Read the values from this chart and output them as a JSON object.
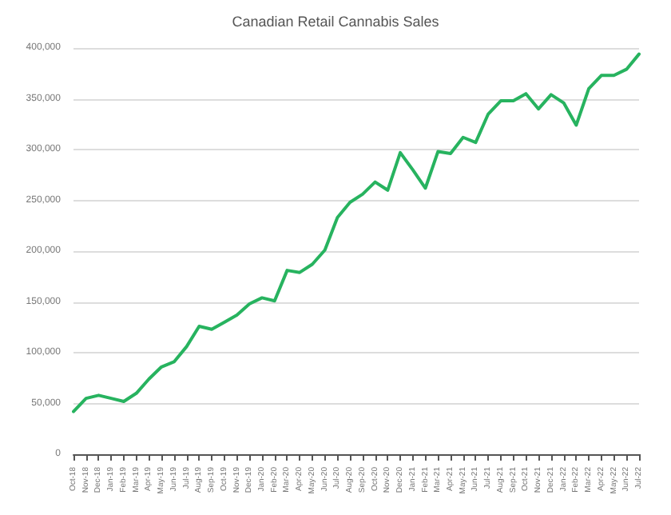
{
  "chart_data": {
    "type": "line",
    "title": "Canadian Retail Cannabis Sales",
    "categories": [
      "Oct-18",
      "Nov-18",
      "Dec-18",
      "Jan-19",
      "Feb-19",
      "Mar-19",
      "Apr-19",
      "May-19",
      "Jun-19",
      "Jul-19",
      "Aug-19",
      "Sep-19",
      "Oct-19",
      "Nov-19",
      "Dec-19",
      "Jan-20",
      "Feb-20",
      "Mar-20",
      "Apr-20",
      "May-20",
      "Jun-20",
      "Jul-20",
      "Aug-20",
      "Sep-20",
      "Oct-20",
      "Nov-20",
      "Dec-20",
      "Jan-21",
      "Feb-21",
      "Mar-21",
      "Apr-21",
      "May-21",
      "Jun-21",
      "Jul-21",
      "Aug-21",
      "Sep-21",
      "Oct-21",
      "Nov-21",
      "Dec-21",
      "Jan-22",
      "Feb-22",
      "Mar-22",
      "Apr-22",
      "May-22",
      "Jun-22",
      "Jul-22"
    ],
    "series": [
      {
        "color": "#27b35f",
        "values": [
          42000,
          55000,
          58000,
          55000,
          52000,
          60000,
          74000,
          86000,
          91000,
          106000,
          126000,
          123000,
          130000,
          137000,
          148000,
          154000,
          151000,
          181000,
          179000,
          187000,
          201000,
          233000,
          248000,
          256000,
          268000,
          260000,
          297000,
          280000,
          262000,
          298000,
          296000,
          312000,
          307000,
          335000,
          348000,
          348000,
          355000,
          340000,
          354000,
          346000,
          324000,
          360000,
          373000,
          373000,
          379000,
          394000
        ]
      }
    ],
    "ylim": [
      0,
      400000
    ],
    "yticks": [
      {
        "value": 0,
        "label": "0"
      },
      {
        "value": 50000,
        "label": "50,000"
      },
      {
        "value": 100000,
        "label": "100,000"
      },
      {
        "value": 150000,
        "label": "150,000"
      },
      {
        "value": 200000,
        "label": "200,000"
      },
      {
        "value": 250000,
        "label": "250,000"
      },
      {
        "value": 300000,
        "label": "300,000"
      },
      {
        "value": 350000,
        "label": "350,000"
      },
      {
        "value": 400000,
        "label": "400,000"
      }
    ],
    "grid": "y",
    "marker": "none",
    "line_style": "solid"
  }
}
